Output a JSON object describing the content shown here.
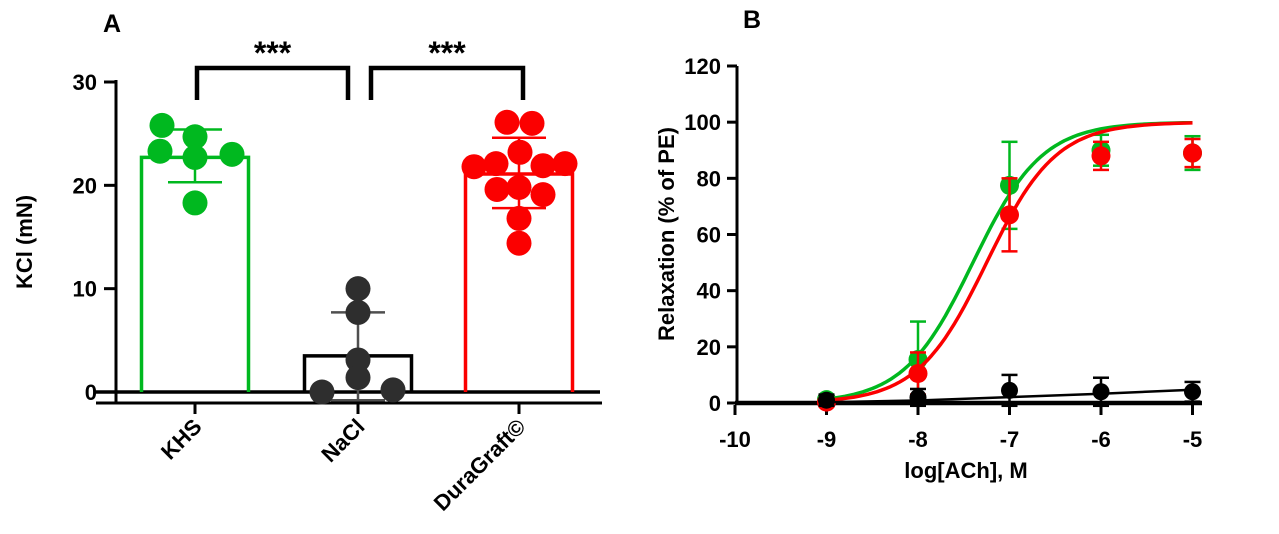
{
  "figure": {
    "panel_a_label": "A",
    "panel_b_label": "B"
  },
  "chart_data": [
    {
      "panel": "A",
      "type": "bar",
      "ylabel": "KCl (mN)",
      "ylim": [
        0,
        30
      ],
      "yticks": [
        0,
        10,
        20,
        30
      ],
      "categories": [
        "KHS",
        "NaCl",
        "DuraGraft©"
      ],
      "groups": [
        {
          "name": "KHS",
          "bar_color": "#00b81f",
          "dot_color": "#00b81f",
          "err_color": "#00b81f",
          "mean": 22.7,
          "sd_low": 20.3,
          "sd_high": 25.4,
          "points": [
            [
              -33,
              25.8
            ],
            [
              0,
              24.7
            ],
            [
              -35,
              23.3
            ],
            [
              0,
              22.7
            ],
            [
              37,
              23.0
            ],
            [
              0,
              18.3
            ]
          ]
        },
        {
          "name": "NaCl",
          "bar_color": "#000000",
          "dot_color": "#2e2e2e",
          "err_color": "#4f4f4f",
          "mean": 3.5,
          "sd_low": -0.8,
          "sd_high": 7.7,
          "points": [
            [
              0,
              10.0
            ],
            [
              0,
              7.7
            ],
            [
              0,
              3.1
            ],
            [
              0,
              1.4
            ],
            [
              -36,
              0.0
            ],
            [
              35,
              0.2
            ]
          ]
        },
        {
          "name": "DuraGraft©",
          "bar_color": "#fb0000",
          "dot_color": "#fb0000",
          "err_color": "#fb0000",
          "mean": 21.1,
          "sd_low": 17.8,
          "sd_high": 24.6,
          "points": [
            [
              -12,
              26.1
            ],
            [
              13,
              26.0
            ],
            [
              1,
              23.2
            ],
            [
              -45,
              21.8
            ],
            [
              -23,
              22.1
            ],
            [
              24,
              21.9
            ],
            [
              46,
              22.1
            ],
            [
              -22,
              19.6
            ],
            [
              0,
              19.8
            ],
            [
              24,
              19.1
            ],
            [
              0,
              16.8
            ],
            [
              0,
              14.4
            ]
          ]
        }
      ],
      "significance": [
        {
          "between": [
            "KHS",
            "NaCl"
          ],
          "label": "***"
        },
        {
          "between": [
            "NaCl",
            "DuraGraft©"
          ],
          "label": "***"
        }
      ]
    },
    {
      "panel": "B",
      "type": "line",
      "xlabel": "log[ACh], M",
      "ylabel": "Relaxation (% of PE)",
      "xlim": [
        -10,
        -5
      ],
      "ylim": [
        0,
        120
      ],
      "xticks": [
        -10,
        -9,
        -8,
        -7,
        -6,
        -5
      ],
      "yticks": [
        0,
        20,
        40,
        60,
        80,
        100,
        120
      ],
      "x": [
        -9,
        -8,
        -7,
        -6,
        -5
      ],
      "series": [
        {
          "name": "KHS",
          "color": "#00b81f",
          "y": [
            1.2,
            15.5,
            77.5,
            90,
            89
          ],
          "err": [
            1.5,
            13.5,
            15.5,
            5.5,
            6
          ],
          "fit": {
            "kind": "sigmoid",
            "bottom": 0,
            "top": 100,
            "logec50": -7.4,
            "hill": 1.15
          }
        },
        {
          "name": "DuraGraft©",
          "color": "#fb0000",
          "y": [
            0.3,
            10.5,
            67,
            88,
            89
          ],
          "err": [
            1.5,
            7.5,
            13,
            5,
            5
          ],
          "fit": {
            "kind": "sigmoid",
            "bottom": 0,
            "top": 100,
            "logec50": -7.25,
            "hill": 1.15
          }
        },
        {
          "name": "NaCl",
          "color": "#000000",
          "y": [
            1.0,
            2.0,
            4.5,
            4.0,
            4.0
          ],
          "err": [
            2,
            3,
            5.5,
            5,
            3.5
          ],
          "fit": {
            "kind": "points",
            "xy": [
              [
                -9,
                0.3
              ],
              [
                -8,
                0.9
              ],
              [
                -7,
                2.1
              ],
              [
                -6,
                3.3
              ],
              [
                -5,
                4.7
              ]
            ]
          }
        }
      ]
    }
  ]
}
